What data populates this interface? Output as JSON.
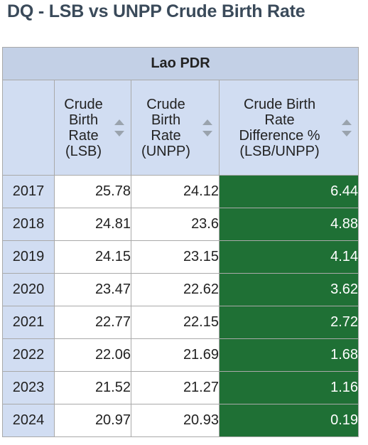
{
  "title": "DQ - LSB vs UNPP Crude Birth Rate",
  "table": {
    "group_header": "Lao PDR",
    "columns": [
      {
        "lines": [
          "Crude",
          "Birth",
          "Rate",
          "(LSB)"
        ]
      },
      {
        "lines": [
          "Crude",
          "Birth",
          "Rate",
          "(UNPP)"
        ]
      },
      {
        "lines": [
          "Crude Birth",
          "Rate",
          "Difference %",
          "(LSB/UNPP)"
        ]
      }
    ],
    "rows": [
      {
        "year": "2017",
        "lsb": "25.78",
        "unpp": "24.12",
        "diff": "6.44"
      },
      {
        "year": "2018",
        "lsb": "24.81",
        "unpp": "23.6",
        "diff": "4.88"
      },
      {
        "year": "2019",
        "lsb": "24.15",
        "unpp": "23.15",
        "diff": "4.14"
      },
      {
        "year": "2020",
        "lsb": "23.47",
        "unpp": "22.62",
        "diff": "3.62"
      },
      {
        "year": "2021",
        "lsb": "22.77",
        "unpp": "22.15",
        "diff": "2.72"
      },
      {
        "year": "2022",
        "lsb": "22.06",
        "unpp": "21.69",
        "diff": "1.68"
      },
      {
        "year": "2023",
        "lsb": "21.52",
        "unpp": "21.27",
        "diff": "1.16"
      },
      {
        "year": "2024",
        "lsb": "20.97",
        "unpp": "20.93",
        "diff": "0.19"
      }
    ]
  },
  "colors": {
    "header_bg": "#c3d0e6",
    "column_header_bg": "#d1ddf2",
    "difference_cell_bg": "#1f7035",
    "title_color": "#3a4a5a"
  }
}
